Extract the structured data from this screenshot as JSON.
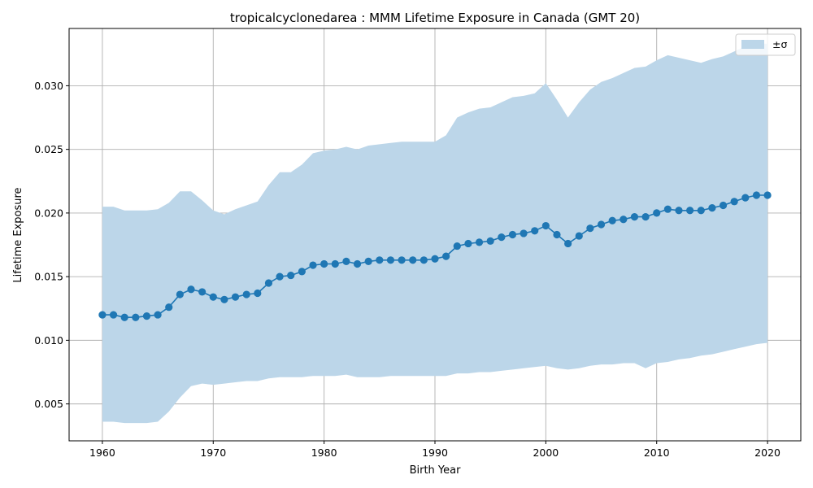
{
  "chart_data": {
    "type": "line",
    "title": "tropicalcyclonedarea : MMM Lifetime Exposure in Canada (GMT 20)",
    "xlabel": "Birth Year",
    "ylabel": "Lifetime Exposure",
    "xlim": [
      1957,
      2023
    ],
    "ylim": [
      0.0021,
      0.0345
    ],
    "xticks": [
      1960,
      1970,
      1980,
      1990,
      2000,
      2010,
      2020
    ],
    "xtick_labels": [
      "1960",
      "1970",
      "1980",
      "1990",
      "2000",
      "2010",
      "2020"
    ],
    "yticks": [
      0.005,
      0.01,
      0.015,
      0.02,
      0.025,
      0.03
    ],
    "ytick_labels": [
      "0.005",
      "0.010",
      "0.015",
      "0.020",
      "0.025",
      "0.030"
    ],
    "grid": true,
    "legend": {
      "position": "top-right",
      "entries": [
        "±σ"
      ]
    },
    "colors": {
      "line": "#1f77b4",
      "band": "#bcd6e9",
      "grid": "#b0b0b0"
    },
    "x": [
      1960,
      1961,
      1962,
      1963,
      1964,
      1965,
      1966,
      1967,
      1968,
      1969,
      1970,
      1971,
      1972,
      1973,
      1974,
      1975,
      1976,
      1977,
      1978,
      1979,
      1980,
      1981,
      1982,
      1983,
      1984,
      1985,
      1986,
      1987,
      1988,
      1989,
      1990,
      1991,
      1992,
      1993,
      1994,
      1995,
      1996,
      1997,
      1998,
      1999,
      2000,
      2001,
      2002,
      2003,
      2004,
      2005,
      2006,
      2007,
      2008,
      2009,
      2010,
      2011,
      2012,
      2013,
      2014,
      2015,
      2016,
      2017,
      2018,
      2019,
      2020
    ],
    "series": [
      {
        "values": [
          0.012,
          0.012,
          0.0118,
          0.0118,
          0.0119,
          0.012,
          0.0126,
          0.0136,
          0.014,
          0.0138,
          0.0134,
          0.0132,
          0.0134,
          0.0136,
          0.0137,
          0.0145,
          0.015,
          0.0151,
          0.0154,
          0.0159,
          0.016,
          0.016,
          0.0162,
          0.016,
          0.0162,
          0.0163,
          0.0163,
          0.0163,
          0.0163,
          0.0163,
          0.0164,
          0.0166,
          0.0174,
          0.0176,
          0.0177,
          0.0178,
          0.0181,
          0.0183,
          0.0184,
          0.0186,
          0.019,
          0.0183,
          0.0176,
          0.0182,
          0.0188,
          0.0191,
          0.0194,
          0.0195,
          0.0197,
          0.0197,
          0.02,
          0.0203,
          0.0202,
          0.0202,
          0.0202,
          0.0204,
          0.0206,
          0.0209,
          0.0212,
          0.0214,
          0.0214
        ]
      },
      {
        "name": "±σ",
        "type": "band",
        "upper": [
          0.0205,
          0.0205,
          0.0202,
          0.0202,
          0.0202,
          0.0203,
          0.0208,
          0.0217,
          0.0217,
          0.021,
          0.0202,
          0.0199,
          0.0203,
          0.0206,
          0.0209,
          0.0222,
          0.0232,
          0.0232,
          0.0238,
          0.0247,
          0.0249,
          0.025,
          0.0252,
          0.025,
          0.0253,
          0.0254,
          0.0255,
          0.0256,
          0.0256,
          0.0256,
          0.0256,
          0.0261,
          0.0275,
          0.0279,
          0.0282,
          0.0283,
          0.0287,
          0.0291,
          0.0292,
          0.0294,
          0.0302,
          0.0289,
          0.0275,
          0.0287,
          0.0297,
          0.0303,
          0.0306,
          0.031,
          0.0314,
          0.0315,
          0.032,
          0.0324,
          0.0322,
          0.032,
          0.0318,
          0.0321,
          0.0323,
          0.0327,
          0.0331,
          0.0333,
          0.0333
        ],
        "lower": [
          0.0036,
          0.0036,
          0.0035,
          0.0035,
          0.0035,
          0.0036,
          0.0044,
          0.0055,
          0.0064,
          0.0066,
          0.0065,
          0.0066,
          0.0067,
          0.0068,
          0.0068,
          0.007,
          0.0071,
          0.0071,
          0.0071,
          0.0072,
          0.0072,
          0.0072,
          0.0073,
          0.0071,
          0.0071,
          0.0071,
          0.0072,
          0.0072,
          0.0072,
          0.0072,
          0.0072,
          0.0072,
          0.0074,
          0.0074,
          0.0075,
          0.0075,
          0.0076,
          0.0077,
          0.0078,
          0.0079,
          0.008,
          0.0078,
          0.0077,
          0.0078,
          0.008,
          0.0081,
          0.0081,
          0.0082,
          0.0082,
          0.0078,
          0.0082,
          0.0083,
          0.0085,
          0.0086,
          0.0088,
          0.0089,
          0.0091,
          0.0093,
          0.0095,
          0.0097,
          0.0098
        ]
      }
    ]
  }
}
